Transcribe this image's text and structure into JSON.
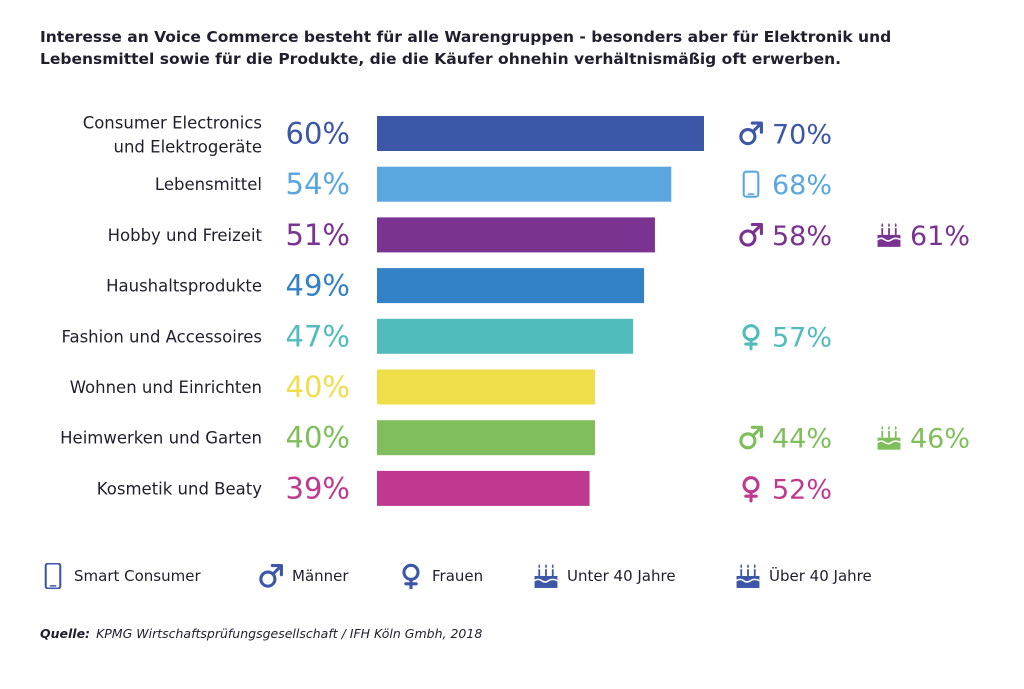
{
  "title": {
    "line1": "Interesse an Voice Commerce besteht für alle Warengruppen - besonders aber für Elektronik und",
    "line2": "Lebensmittel sowie für die Produkte, die die Käufer ohnehin verhältnismäßig oft erwerben."
  },
  "chart_data": {
    "type": "bar",
    "orientation": "horizontal",
    "categories": [
      [
        "Consumer Electronics",
        "und Elektrogeräte"
      ],
      [
        "Lebensmittel"
      ],
      [
        "Hobby und Freizeit"
      ],
      [
        "Haushaltsprodukte"
      ],
      [
        "Fashion und Accessoires"
      ],
      [
        "Wohnen und Einrichten"
      ],
      [
        "Heimwerken und Garten"
      ],
      [
        "Kosmetik und Beaty"
      ]
    ],
    "values": [
      60,
      54,
      51,
      49,
      47,
      40,
      40,
      39
    ],
    "value_labels": [
      "60%",
      "54%",
      "51%",
      "49%",
      "47%",
      "40%",
      "40%",
      "39%"
    ],
    "colors": [
      "#3d57a8",
      "#5aa7e0",
      "#7a3390",
      "#3381c7",
      "#52bcbc",
      "#f0dd4a",
      "#7fbe5a",
      "#bf3a8e"
    ],
    "xlim": [
      0,
      60
    ],
    "segments": [
      [
        {
          "icon": "male",
          "label": "70%"
        }
      ],
      [
        {
          "icon": "smartphone",
          "label": "68%"
        }
      ],
      [
        {
          "icon": "male",
          "label": "58%"
        },
        {
          "icon": "cake",
          "label": "61%"
        }
      ],
      [],
      [
        {
          "icon": "female",
          "label": "57%"
        }
      ],
      [],
      [
        {
          "icon": "male",
          "label": "44%"
        },
        {
          "icon": "cake",
          "label": "46%"
        }
      ],
      [
        {
          "icon": "female",
          "label": "52%"
        }
      ]
    ]
  },
  "legend": [
    {
      "icon": "smartphone",
      "label": "Smart Consumer"
    },
    {
      "icon": "male",
      "label": "Männer"
    },
    {
      "icon": "female",
      "label": "Frauen"
    },
    {
      "icon": "cake",
      "label": "Unter 40 Jahre"
    },
    {
      "icon": "cake",
      "label": "Über 40 Jahre"
    }
  ],
  "legend_color": "#3d57a8",
  "source": {
    "prefix": "Quelle:",
    "text": "KPMG Wirtschaftsprüfungsgesellschaft / IFH Köln Gmbh, 2018"
  }
}
